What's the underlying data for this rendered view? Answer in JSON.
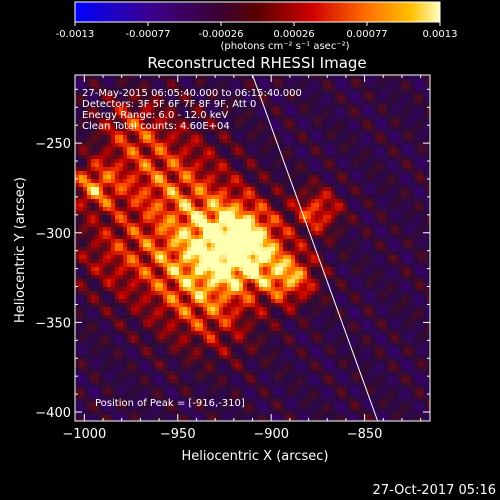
{
  "colorbar": {
    "ticks": [
      "-0.0013",
      "-0.00077",
      "-0.00026",
      "0.00026",
      "0.00077",
      "0.0013"
    ],
    "unit_label": "(photons cm⁻² s⁻¹ asec⁻²)"
  },
  "footer": {
    "timestamp": "27-Oct-2017 05:16"
  },
  "chart_data": {
    "type": "heatmap",
    "title": "Reconstructed RHESSI Image",
    "xlabel": "Heliocentric X (arcsec)",
    "ylabel": "Heliocentric Y (arcsec)",
    "xlim": [
      -1005,
      -815
    ],
    "ylim": [
      -405,
      -212
    ],
    "xticks": [
      -1000,
      -950,
      -900,
      -850
    ],
    "xtick_labels": [
      "−1000",
      "−950",
      "−900",
      "−850"
    ],
    "yticks": [
      -250,
      -300,
      -350,
      -400
    ],
    "ytick_labels": [
      "−250",
      "−300",
      "−350",
      "−400"
    ],
    "value_range": [
      -0.0013,
      0.0013
    ],
    "colormap": [
      "#0000ff",
      "#3a0078",
      "#2a0a3a",
      "#5a0a1a",
      "#c00000",
      "#ff5000",
      "#ffb000",
      "#ffffb0"
    ],
    "annotations": [
      "27-May-2015 06:05:40.000 to 06:15:40.000",
      "Detectors: 3F 5F 6F 7F 8F 9F, Att 0",
      "Energy Range: 6.0 - 12.0 keV",
      "Clean    Total counts: 4.60E+04"
    ],
    "peak_label": "Position of Peak = [-916,-310]",
    "peak": {
      "x": -916,
      "y": -310,
      "value": 0.0013
    },
    "sources": [
      {
        "x": -916,
        "y": -308,
        "sigma": 14,
        "amp": 1.0
      },
      {
        "x": -930,
        "y": -300,
        "sigma": 20,
        "amp": 0.55
      },
      {
        "x": -890,
        "y": -325,
        "sigma": 10,
        "amp": 0.7
      },
      {
        "x": -875,
        "y": -288,
        "sigma": 9,
        "amp": 0.55
      },
      {
        "x": -995,
        "y": -274,
        "sigma": 9,
        "amp": 0.55
      },
      {
        "x": -960,
        "y": -268,
        "sigma": 22,
        "amp": 0.5
      },
      {
        "x": -950,
        "y": -325,
        "sigma": 20,
        "amp": 0.4
      },
      {
        "x": -930,
        "y": -345,
        "sigma": 18,
        "amp": 0.35
      },
      {
        "x": -985,
        "y": -312,
        "sigma": 16,
        "amp": 0.3
      },
      {
        "x": -975,
        "y": -240,
        "sigma": 12,
        "amp": 0.3
      }
    ],
    "limb_line": {
      "x1": -910,
      "y1": -212,
      "x2": -843,
      "y2": -405
    }
  }
}
